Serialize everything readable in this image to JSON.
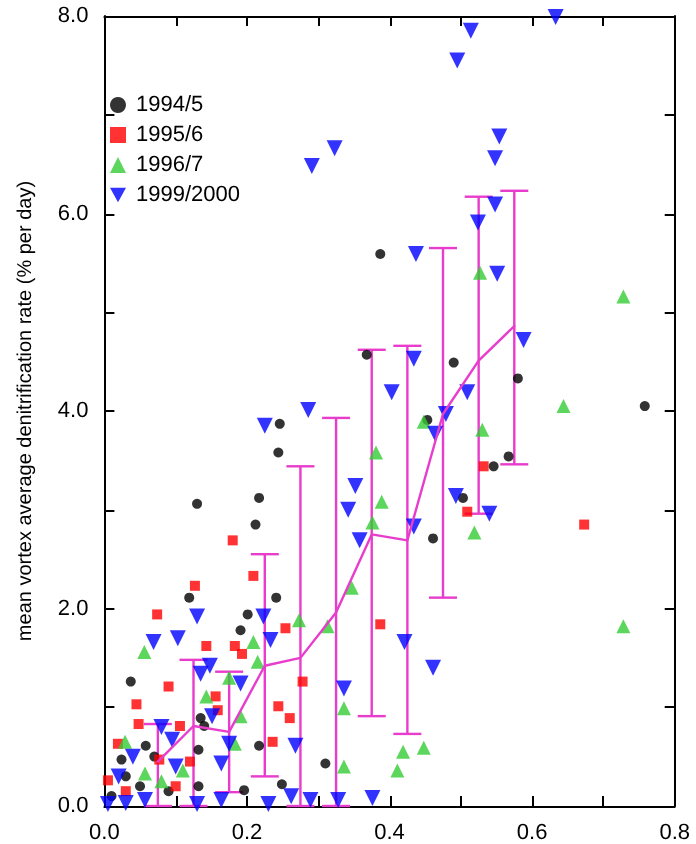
{
  "chart_data": {
    "type": "scatter",
    "ylabel": "mean vortex average denitrification rate (% per day)",
    "xlim": [
      0,
      0.8
    ],
    "ylim": [
      0,
      8
    ],
    "xticks": [
      {
        "value": 0,
        "label": "0.0"
      },
      {
        "value": 0.1,
        "label": null
      },
      {
        "value": 0.2,
        "label": "0.2"
      },
      {
        "value": 0.3,
        "label": null
      },
      {
        "value": 0.4,
        "label": "0.4"
      },
      {
        "value": 0.5,
        "label": null
      },
      {
        "value": 0.6,
        "label": "0.6"
      },
      {
        "value": 0.7,
        "label": null
      },
      {
        "value": 0.8,
        "label": "0.8"
      }
    ],
    "yticks": [
      {
        "value": 0,
        "label": "0.0"
      },
      {
        "value": 1,
        "label": null
      },
      {
        "value": 2,
        "label": "2.0"
      },
      {
        "value": 3,
        "label": null
      },
      {
        "value": 4,
        "label": "4.0"
      },
      {
        "value": 5,
        "label": null
      },
      {
        "value": 6,
        "label": "6.0"
      },
      {
        "value": 7,
        "label": null
      },
      {
        "value": 8,
        "label": "8.0"
      }
    ],
    "legend": "top left",
    "series": [
      {
        "name": "1994/5",
        "color": "#000000",
        "marker": "circle",
        "x": [
          0.387,
          0.49,
          0.368,
          0.58,
          0.246,
          0.244,
          0.217,
          0.212,
          0.13,
          0.119,
          0.241,
          0.201,
          0.191,
          0.037,
          0.135,
          0.14,
          0.217,
          0.132,
          0.058,
          0.758,
          0.567,
          0.546,
          0.503,
          0.461,
          0.453,
          0.31,
          0.132,
          0.196,
          0.249,
          0.024,
          0.01,
          0.03,
          0.05,
          0.07,
          0.09
        ],
        "values": [
          5.59,
          4.49,
          4.57,
          4.33,
          3.87,
          3.58,
          3.12,
          2.85,
          3.06,
          2.11,
          2.11,
          1.94,
          1.78,
          1.26,
          0.89,
          0.81,
          0.61,
          0.57,
          0.61,
          4.05,
          3.54,
          3.44,
          3.12,
          2.71,
          3.91,
          0.43,
          0.2,
          0.16,
          0.22,
          0.47,
          0.1,
          0.3,
          0.2,
          0.5,
          0.15
        ]
      },
      {
        "name": "1995/6",
        "color": "#ff0000",
        "marker": "square",
        "x": [
          0.18,
          0.209,
          0.127,
          0.074,
          0.143,
          0.183,
          0.193,
          0.254,
          0.09,
          0.045,
          0.156,
          0.159,
          0.244,
          0.26,
          0.278,
          0.106,
          0.048,
          0.019,
          0.236,
          0.387,
          0.532,
          0.509,
          0.673,
          0.005,
          0.077,
          0.03,
          0.1,
          0.12
        ],
        "values": [
          2.69,
          2.33,
          2.23,
          1.94,
          1.62,
          1.62,
          1.54,
          1.8,
          1.21,
          1.03,
          1.11,
          0.97,
          1.01,
          0.89,
          1.26,
          0.81,
          0.83,
          0.63,
          0.65,
          1.84,
          3.44,
          2.98,
          2.85,
          0.26,
          0.47,
          0.15,
          0.2,
          0.45
        ]
      },
      {
        "name": "1996/7",
        "color": "#33cc33",
        "marker": "triangle",
        "x": [
          0.644,
          0.728,
          0.381,
          0.389,
          0.376,
          0.448,
          0.53,
          0.519,
          0.419,
          0.448,
          0.527,
          0.728,
          0.347,
          0.313,
          0.336,
          0.273,
          0.209,
          0.215,
          0.056,
          0.175,
          0.143,
          0.191,
          0.029,
          0.183,
          0.411,
          0.336,
          0.057,
          0.08,
          0.11
        ],
        "values": [
          4.05,
          1.82,
          3.58,
          3.08,
          2.87,
          3.89,
          3.81,
          2.77,
          0.55,
          0.59,
          5.4,
          5.16,
          2.21,
          1.82,
          0.99,
          1.88,
          1.66,
          1.46,
          1.56,
          1.3,
          1.11,
          0.91,
          0.65,
          0.63,
          0.36,
          0.4,
          0.33,
          0.25,
          0.36
        ]
      },
      {
        "name": "1999/2000",
        "color": "#0000ff",
        "marker": "triangle-down",
        "x": [
          0.633,
          0.514,
          0.495,
          0.554,
          0.548,
          0.548,
          0.524,
          0.437,
          0.551,
          0.588,
          0.434,
          0.403,
          0.291,
          0.323,
          0.225,
          0.286,
          0.13,
          0.103,
          0.069,
          0.223,
          0.233,
          0.135,
          0.148,
          0.191,
          0.151,
          0.336,
          0.268,
          0.358,
          0.352,
          0.342,
          0.095,
          0.175,
          0.509,
          0.464,
          0.479,
          0.493,
          0.54,
          0.434,
          0.421,
          0.461,
          0.376,
          0.289,
          0.328,
          0.23,
          0.164,
          0.13,
          0.262,
          0.005,
          0.03,
          0.057,
          0.164,
          0.02,
          0.04,
          0.08,
          0.1
        ],
        "values": [
          7.99,
          7.85,
          7.55,
          6.78,
          6.56,
          6.09,
          5.91,
          5.59,
          5.39,
          4.72,
          4.53,
          4.19,
          6.48,
          6.66,
          3.85,
          4.01,
          1.92,
          1.7,
          1.66,
          1.92,
          1.68,
          1.34,
          1.42,
          1.24,
          0.91,
          1.19,
          0.61,
          2.69,
          3.24,
          3.0,
          0.67,
          0.63,
          4.19,
          3.77,
          3.97,
          3.14,
          2.96,
          2.83,
          1.66,
          1.4,
          0.08,
          0.06,
          0.06,
          0.02,
          0.06,
          0.02,
          0.1,
          0.02,
          0.03,
          0.06,
          0.43,
          0.3,
          0.5,
          0.8,
          0.4
        ]
      },
      {
        "type": "line",
        "color": "#e83ccc",
        "marker": "none",
        "line_style": "solid",
        "x": [
          0.075,
          0.125,
          0.175,
          0.225,
          0.275,
          0.325,
          0.375,
          0.425,
          0.475,
          0.525,
          0.575
        ],
        "values": [
          0.45,
          0.81,
          0.75,
          1.42,
          1.5,
          1.96,
          2.75,
          2.69,
          3.97,
          4.51,
          4.86
        ],
        "errors": [
          [
            0,
            0.83
          ],
          [
            0,
            1.48
          ],
          [
            0.14,
            1.36
          ],
          [
            0.3,
            2.55
          ],
          [
            0,
            3.44
          ],
          [
            0,
            3.93
          ],
          [
            0.91,
            4.62
          ],
          [
            0.73,
            4.66
          ],
          [
            2.11,
            5.65
          ],
          [
            2.96,
            6.17
          ],
          [
            3.46,
            6.23
          ]
        ]
      }
    ]
  }
}
